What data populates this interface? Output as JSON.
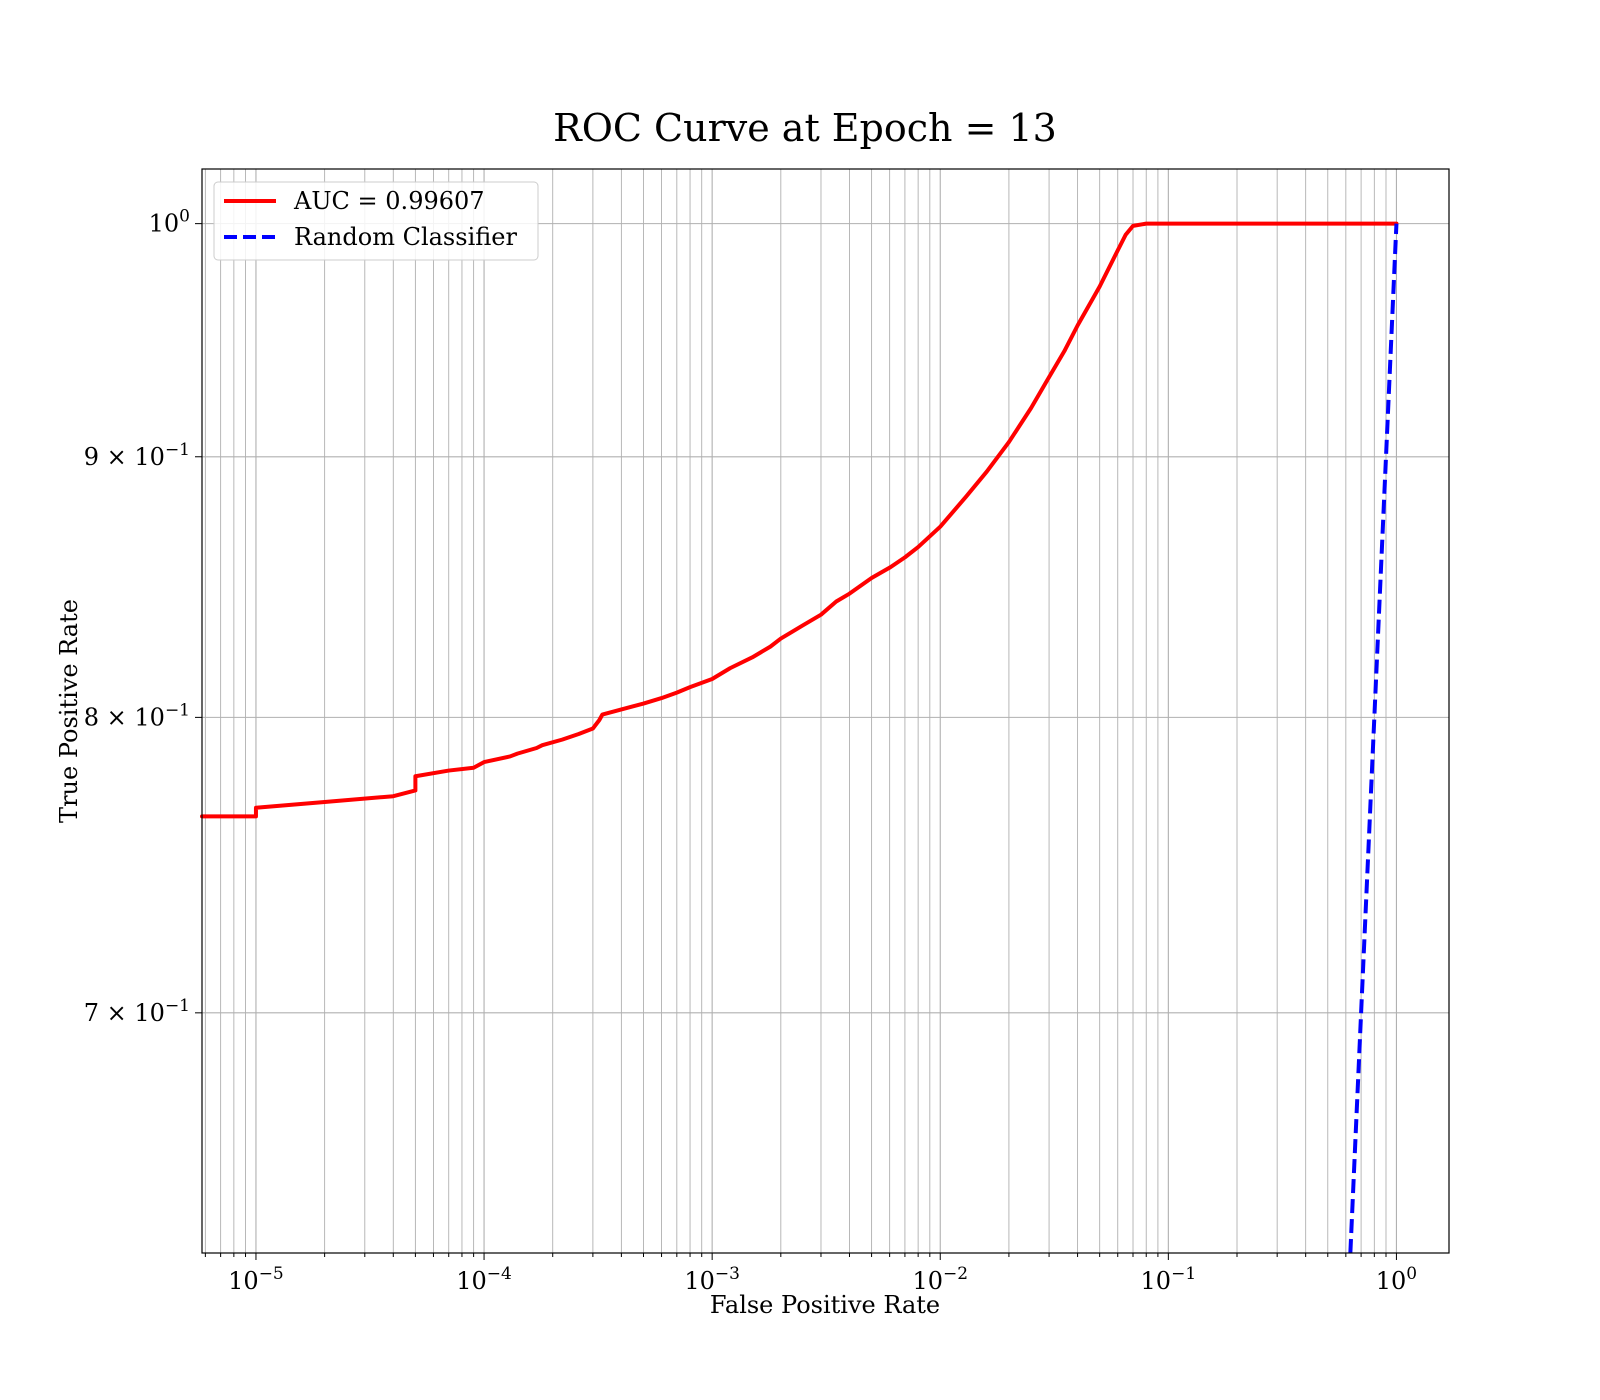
{
  "chart_data": {
    "type": "line",
    "title": "ROC Curve at Epoch = 13",
    "xlabel": "False Positive Rate",
    "ylabel": "True Positive Rate",
    "xscale": "log",
    "yscale": "log",
    "xlim": [
      5.8e-06,
      1.7
    ],
    "ylim": [
      0.628,
      1.025
    ],
    "grid": true,
    "legend_position": "top-left",
    "x_ticks": [
      {
        "value": 1e-05,
        "base": "10",
        "exp": "−5"
      },
      {
        "value": 0.0001,
        "base": "10",
        "exp": "−4"
      },
      {
        "value": 0.001,
        "base": "10",
        "exp": "−3"
      },
      {
        "value": 0.01,
        "base": "10",
        "exp": "−2"
      },
      {
        "value": 0.1,
        "base": "10",
        "exp": "−1"
      },
      {
        "value": 1,
        "base": "10",
        "exp": "0"
      }
    ],
    "y_ticks": [
      {
        "value": 1.0,
        "base": "10",
        "exp": "0"
      },
      {
        "value": 0.9,
        "base": "9 × 10",
        "exp": "−1"
      },
      {
        "value": 0.8,
        "base": "8 × 10",
        "exp": "−1"
      },
      {
        "value": 0.7,
        "base": "7 × 10",
        "exp": "−1"
      }
    ],
    "series": [
      {
        "name": "AUC = 0.99607",
        "color": "#ff0000",
        "style": "solid",
        "x": [
          5.8e-06,
          1e-05,
          1e-05,
          2e-05,
          4e-05,
          5e-05,
          5e-05,
          7e-05,
          9e-05,
          0.0001,
          0.00013,
          0.00014,
          0.00017,
          0.00018,
          0.00022,
          0.00026,
          0.0003,
          0.00032,
          0.00033,
          0.00045,
          0.0005,
          0.0006,
          0.0007,
          0.0008,
          0.001,
          0.0012,
          0.0015,
          0.0018,
          0.002,
          0.0025,
          0.003,
          0.0035,
          0.004,
          0.005,
          0.006,
          0.007,
          0.008,
          0.01,
          0.013,
          0.016,
          0.02,
          0.025,
          0.03,
          0.035,
          0.04,
          0.05,
          0.06,
          0.065,
          0.07,
          0.08,
          0.1,
          0.2,
          0.5,
          1.0
        ],
        "y": [
          0.765,
          0.765,
          0.768,
          0.77,
          0.772,
          0.774,
          0.779,
          0.781,
          0.782,
          0.784,
          0.786,
          0.787,
          0.789,
          0.79,
          0.792,
          0.794,
          0.796,
          0.799,
          0.801,
          0.804,
          0.805,
          0.807,
          0.809,
          0.811,
          0.814,
          0.818,
          0.822,
          0.826,
          0.829,
          0.834,
          0.838,
          0.843,
          0.846,
          0.852,
          0.856,
          0.86,
          0.864,
          0.872,
          0.884,
          0.894,
          0.906,
          0.92,
          0.933,
          0.944,
          0.955,
          0.972,
          0.988,
          0.995,
          0.999,
          1.0,
          1.0,
          1.0,
          1.0,
          1.0
        ]
      },
      {
        "name": "Random Classifier",
        "color": "#0000ff",
        "style": "dashed",
        "x": [
          0.628,
          1.0
        ],
        "y": [
          0.628,
          1.0
        ]
      }
    ]
  }
}
